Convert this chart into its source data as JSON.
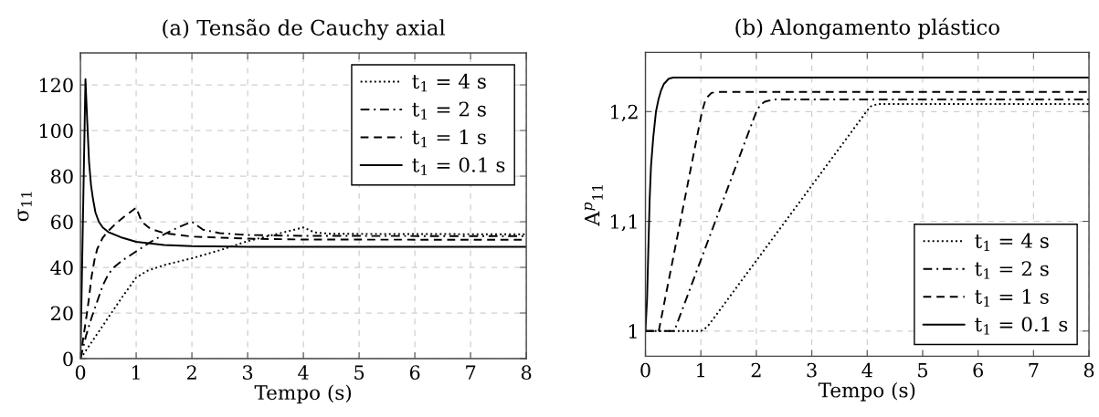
{
  "chart_data": [
    {
      "type": "line",
      "title": "(a) Tensão de Cauchy axial",
      "xlabel": "Tempo (s)",
      "ylabel": "σ$_{11}$",
      "xlim": [
        0,
        8
      ],
      "xticks": [
        0,
        1,
        2,
        3,
        4,
        5,
        6,
        7,
        8
      ],
      "ylim": [
        0,
        134
      ],
      "yticks": [
        0,
        20,
        40,
        60,
        80,
        100,
        120
      ],
      "grid": true,
      "legend": "top right",
      "series": [
        {
          "name": "t$_{1}$ = 4 s",
          "color": "#000000",
          "line_style": "dotted",
          "x": [
            0,
            0.25,
            0.5,
            0.75,
            1,
            1.2,
            1.5,
            2,
            2.5,
            3,
            3.5,
            4,
            4.2,
            4.5,
            8
          ],
          "values": [
            0,
            9,
            18,
            27,
            35.5,
            38.5,
            41,
            44,
            47.5,
            51.5,
            54.5,
            57.5,
            55.3,
            54.7,
            54.5
          ]
        },
        {
          "name": "t$_{1}$ = 2 s",
          "color": "#000000",
          "line_style": "dashdot",
          "x": [
            0,
            0.1,
            0.2,
            0.3,
            0.4,
            0.5,
            0.6,
            0.75,
            1,
            1.25,
            1.5,
            1.75,
            2,
            2.2,
            2.5,
            3,
            4,
            8
          ],
          "values": [
            0,
            10,
            18,
            25,
            32,
            37,
            40,
            43,
            47,
            51,
            54.5,
            57.5,
            60,
            56.5,
            55,
            54.2,
            53.8,
            53.7
          ]
        },
        {
          "name": "t$_{1}$ = 1 s",
          "color": "#000000",
          "line_style": "dashed",
          "x": [
            0,
            0.05,
            0.1,
            0.15,
            0.2,
            0.25,
            0.3,
            0.4,
            0.5,
            0.65,
            0.8,
            1,
            1.1,
            1.25,
            1.5,
            2,
            3,
            4,
            8
          ],
          "values": [
            0,
            9,
            17,
            26,
            36,
            43,
            48,
            53,
            56,
            59.6,
            62.5,
            66.2,
            60,
            57,
            55,
            53.5,
            52.6,
            52.2,
            52.1
          ]
        },
        {
          "name": "t$_{1}$ = 0.1 s",
          "color": "#000000",
          "line_style": "solid",
          "x": [
            0,
            0.09,
            0.12,
            0.155,
            0.19,
            0.225,
            0.27,
            0.33,
            0.4,
            0.5,
            0.75,
            1,
            1.5,
            2,
            3,
            8
          ],
          "values": [
            0,
            122.5,
            105,
            86,
            76,
            70,
            64,
            60,
            57.5,
            55.5,
            53,
            51.2,
            49.8,
            49.3,
            49,
            49
          ]
        }
      ]
    },
    {
      "type": "line",
      "title": "(b) Alongamento plástico",
      "xlabel": "Tempo (s)",
      "ylabel": "A$^{p}$$_{11}$",
      "xlim": [
        0,
        8
      ],
      "xticks": [
        0,
        1,
        2,
        3,
        4,
        5,
        6,
        7,
        8
      ],
      "ylim": [
        0.977,
        1.254
      ],
      "yticks": [
        1,
        {
          "value": 1.1,
          "label": "1,1"
        },
        {
          "value": 1.2,
          "label": "1,2"
        }
      ],
      "grid": true,
      "legend": "bottom right",
      "series": [
        {
          "name": "t$_{1}$ = 4 s",
          "color": "#000000",
          "line_style": "dotted",
          "x": [
            0,
            1,
            1.07,
            1.15,
            4,
            4.07,
            4.2,
            8
          ],
          "values": [
            1,
            1,
            1.002,
            1.006,
            1.201,
            1.205,
            1.207,
            1.207
          ]
        },
        {
          "name": "t$_{1}$ = 2 s",
          "color": "#000000",
          "line_style": "dashdot",
          "x": [
            0,
            0.52,
            2,
            2.07,
            2.15,
            2.3,
            8
          ],
          "values": [
            1,
            1,
            1.2,
            1.206,
            1.209,
            1.211,
            1.211
          ]
        },
        {
          "name": "t$_{1}$ = 1 s",
          "color": "#000000",
          "line_style": "dashed",
          "x": [
            0,
            0.24,
            1.02,
            1.09,
            1.19,
            1.3,
            8
          ],
          "values": [
            1,
            1,
            1.2,
            1.212,
            1.217,
            1.218,
            1.218
          ]
        },
        {
          "name": "t$_{1}$ = 0.1 s",
          "color": "#000000",
          "line_style": "solid",
          "x": [
            0,
            0.03,
            0.05,
            0.076,
            0.1,
            0.14,
            0.19,
            0.235,
            0.28,
            0.33,
            0.42,
            0.5,
            8
          ],
          "values": [
            1,
            1.03,
            1.07,
            1.12,
            1.15,
            1.176,
            1.2,
            1.211,
            1.219,
            1.225,
            1.23,
            1.231,
            1.231
          ]
        }
      ]
    }
  ]
}
